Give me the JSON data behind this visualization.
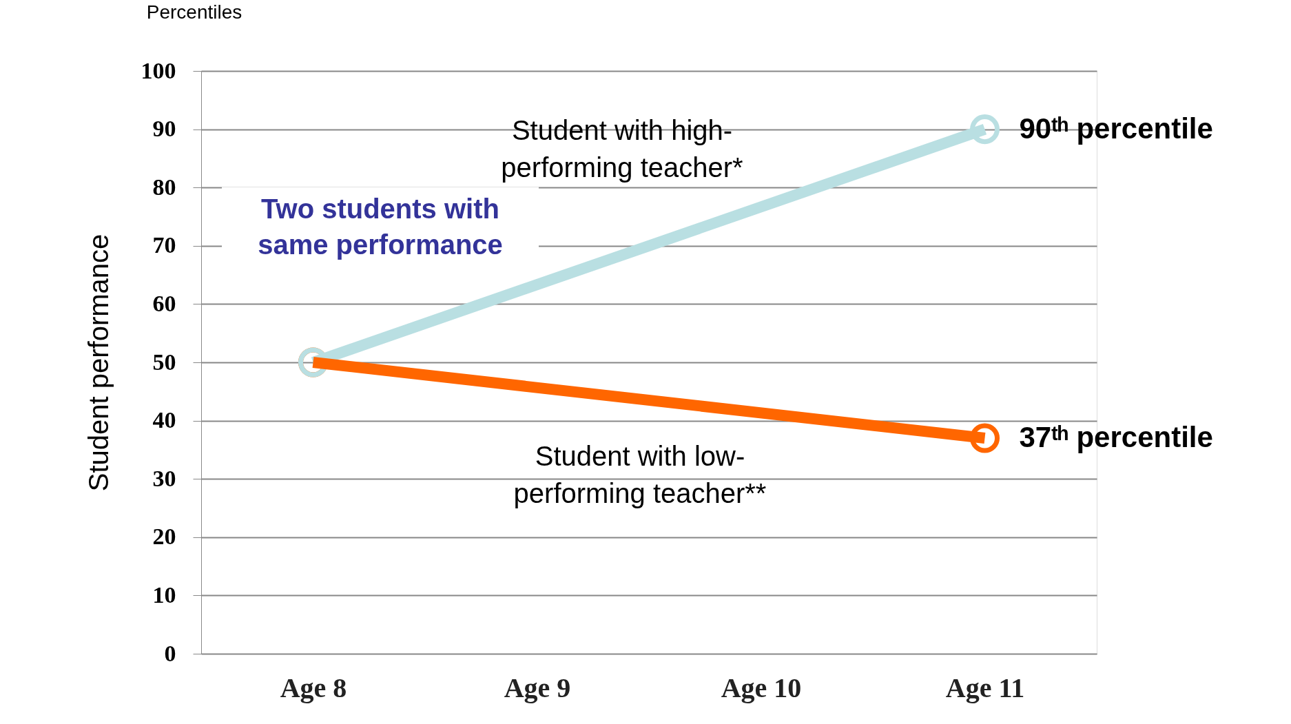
{
  "chart_data": {
    "type": "line",
    "ylabel": "Student performance",
    "categories": [
      "Age 8",
      "Age 9",
      "Age 10",
      "Age 11"
    ],
    "series": [
      {
        "name": "Student with high-performing teacher*",
        "color": "#b9dfe2",
        "values": [
          50,
          null,
          null,
          90
        ]
      },
      {
        "name": "Student with low-performing teacher**",
        "color": "#ff6600",
        "values": [
          50,
          null,
          null,
          37
        ]
      }
    ],
    "ylim": [
      0,
      100
    ],
    "yticks": [
      0,
      10,
      20,
      30,
      40,
      50,
      60,
      70,
      80,
      90,
      100
    ],
    "grid": "y",
    "legend": false,
    "marker": "circle",
    "line_style": "solid",
    "annotations": [
      "Percentiles",
      {
        "text": "90ᵗʰ percentile",
        "x": "Age 11",
        "y": 90
      },
      {
        "text": "37ᵗʰ percentile",
        "x": "Age 11",
        "y": 37
      },
      "Two students with same performance"
    ]
  }
}
